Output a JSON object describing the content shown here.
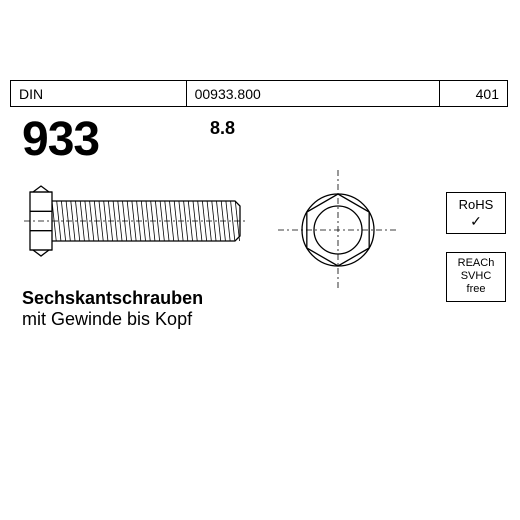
{
  "header": {
    "col1": "DIN",
    "col2": "00933.800",
    "col3": "401",
    "col1_width": 176,
    "col2_width": 254,
    "col3_width": 68
  },
  "standard_number": "933",
  "grade": "8.8",
  "description": {
    "line1": "Sechskantschrauben",
    "line2": "mit Gewinde bis Kopf"
  },
  "badges": {
    "rohs": {
      "text": "RoHS",
      "check": "✓"
    },
    "reach": {
      "line1": "REACh",
      "line2": "SVHC",
      "line3": "free"
    }
  },
  "bolt_side_view": {
    "head_width": 22,
    "head_height": 58,
    "cap_height": 6,
    "shaft_length": 188,
    "shaft_height": 40,
    "thread_count": 40,
    "stroke": "#000000",
    "stroke_width": 1.3,
    "centerline_dash": "6,3,2,3"
  },
  "hex_front_view": {
    "radius": 36,
    "inner_radius": 24,
    "stroke": "#000000",
    "stroke_width": 1.3,
    "centerline_dash": "6,3,2,3",
    "centerline_ext": 48
  },
  "colors": {
    "background": "#ffffff",
    "text": "#000000",
    "border": "#000000"
  }
}
